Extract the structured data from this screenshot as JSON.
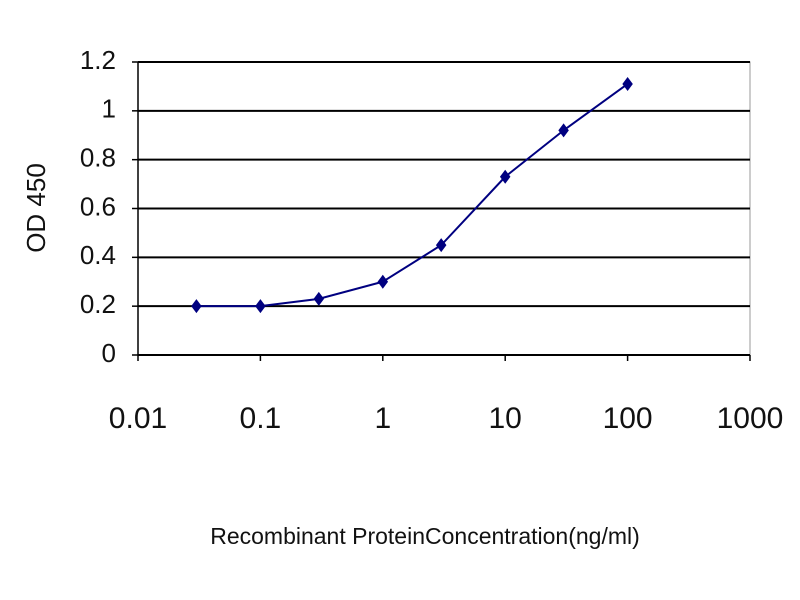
{
  "chart_data": {
    "type": "line",
    "x": [
      0.03,
      0.1,
      0.3,
      1,
      3,
      10,
      30,
      100
    ],
    "values": [
      0.2,
      0.2,
      0.23,
      0.3,
      0.45,
      0.73,
      0.92,
      1.11
    ],
    "color": "#000080",
    "xlim": [
      0.01,
      1000
    ],
    "xticks": [
      0.01,
      0.1,
      1,
      10,
      100,
      1000
    ],
    "xscale": "log",
    "ylim": [
      0,
      1.2
    ],
    "yticks": [
      0,
      0.2,
      0.4,
      0.6,
      0.8,
      1,
      1.2
    ],
    "grid": true,
    "xlabel": "Recombinant ProteinConcentration(ng/ml)",
    "ylabel": "OD 450"
  }
}
